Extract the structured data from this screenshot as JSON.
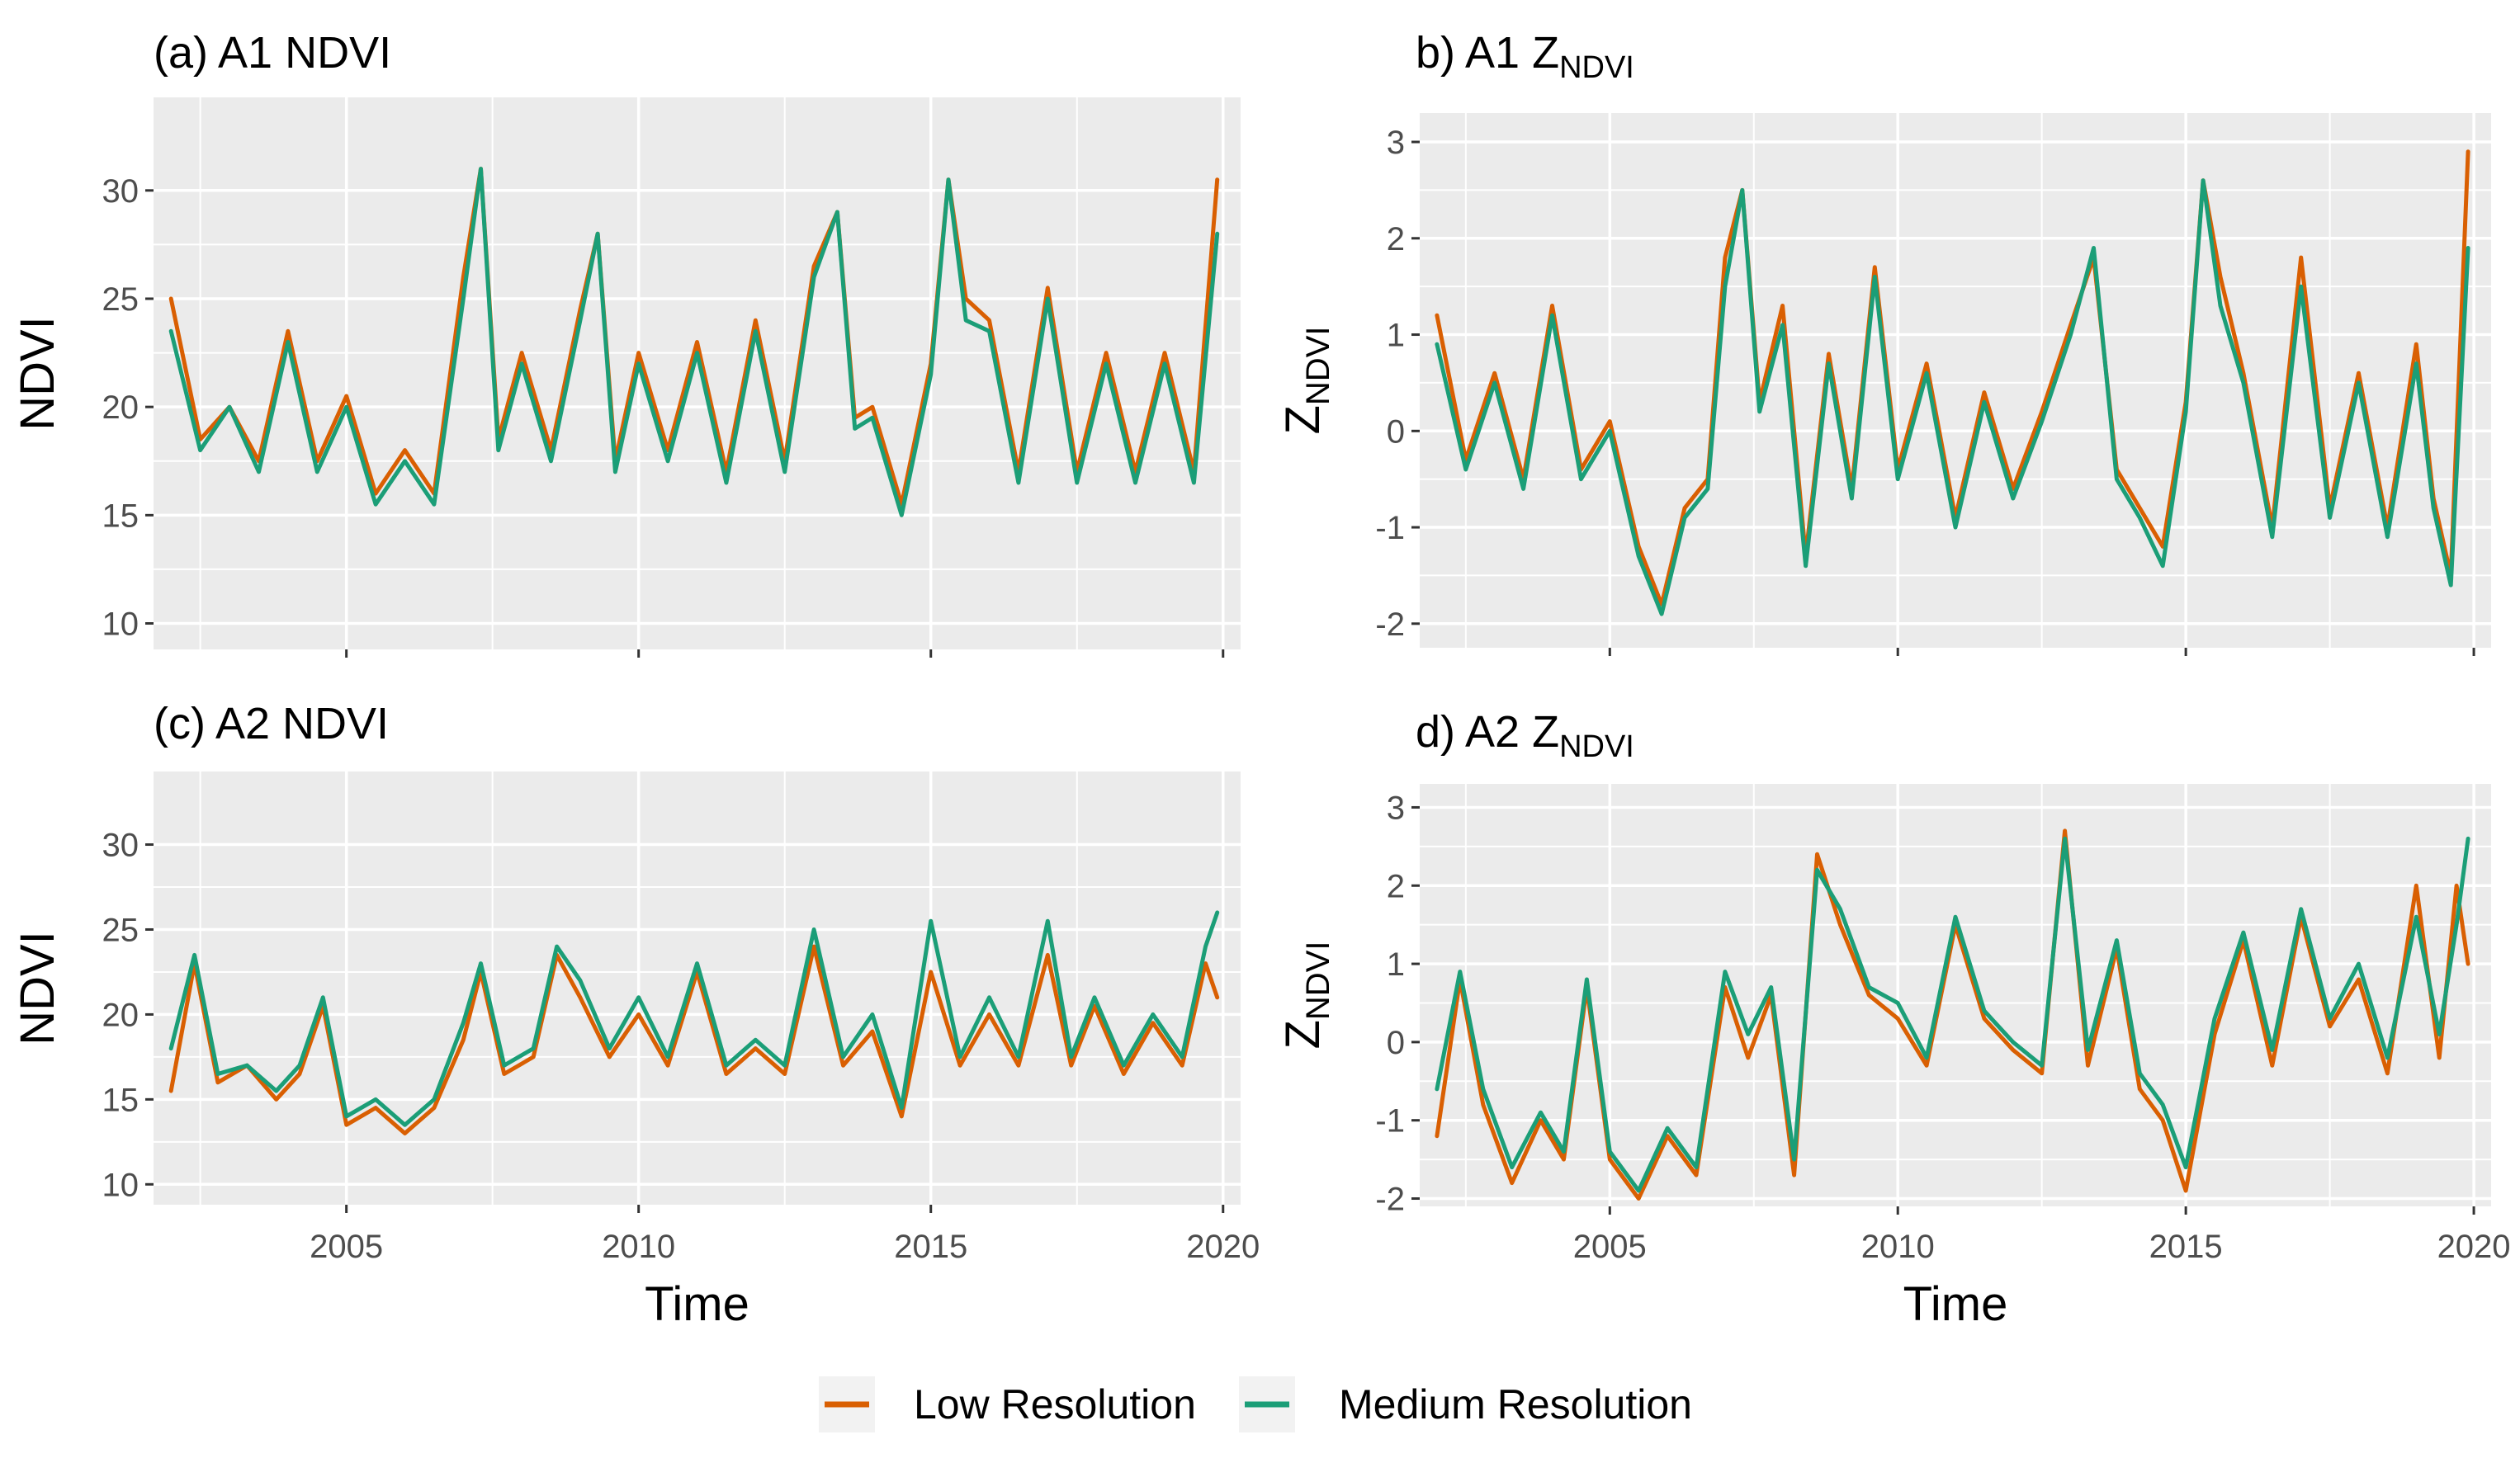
{
  "figure": {
    "legend": [
      {
        "label": "Low Resolution",
        "color": "#d95f02"
      },
      {
        "label": "Medium Resolution",
        "color": "#1b9e77"
      }
    ]
  },
  "chart_data": [
    {
      "type": "line",
      "title": "(a) A1 NDVI",
      "title_parts": {
        "main": "(a) A1 NDVI",
        "sub": ""
      },
      "xlabel": "",
      "ylabel": "NDVI",
      "ylabel_parts": {
        "main": "NDVI",
        "sub": ""
      },
      "xlim": [
        2001.7,
        2020.3
      ],
      "ylim": [
        8.8,
        34.3
      ],
      "xticks": [
        2005,
        2010,
        2015,
        2020
      ],
      "xtick_labels": [],
      "yticks": [
        10,
        15,
        20,
        25,
        30
      ],
      "ytick_labels": [
        "10",
        "15",
        "20",
        "25",
        "30"
      ],
      "x": [
        2002.0,
        2002.5,
        2003.0,
        2003.5,
        2004.0,
        2004.5,
        2005.0,
        2005.5,
        2006.0,
        2006.5,
        2007.0,
        2007.3,
        2007.6,
        2008.0,
        2008.5,
        2009.0,
        2009.3,
        2009.6,
        2010.0,
        2010.5,
        2011.0,
        2011.5,
        2012.0,
        2012.5,
        2013.0,
        2013.4,
        2013.7,
        2014.0,
        2014.5,
        2015.0,
        2015.3,
        2015.6,
        2016.0,
        2016.5,
        2017.0,
        2017.5,
        2018.0,
        2018.5,
        2019.0,
        2019.5,
        2019.9
      ],
      "series": [
        {
          "name": "Low Resolution",
          "values": [
            25.0,
            18.5,
            20.0,
            17.5,
            23.5,
            17.5,
            20.5,
            16.0,
            18.0,
            16.0,
            26.0,
            31.0,
            18.5,
            22.5,
            18.0,
            24.5,
            28.0,
            17.5,
            22.5,
            18.0,
            23.0,
            17.0,
            24.0,
            17.5,
            26.5,
            29.0,
            19.5,
            20.0,
            15.5,
            22.0,
            30.5,
            25.0,
            24.0,
            17.0,
            25.5,
            17.0,
            22.5,
            17.0,
            22.5,
            17.0,
            30.5
          ]
        },
        {
          "name": "Medium Resolution",
          "values": [
            23.5,
            18.0,
            20.0,
            17.0,
            23.0,
            17.0,
            20.0,
            15.5,
            17.5,
            15.5,
            25.0,
            31.0,
            18.0,
            22.0,
            17.5,
            24.0,
            28.0,
            17.0,
            22.0,
            17.5,
            22.5,
            16.5,
            23.5,
            17.0,
            26.0,
            29.0,
            19.0,
            19.5,
            15.0,
            21.5,
            30.5,
            24.0,
            23.5,
            16.5,
            25.0,
            16.5,
            22.0,
            16.5,
            22.0,
            16.5,
            28.0
          ]
        }
      ]
    },
    {
      "type": "line",
      "title": "b) A1 ZNDVI",
      "title_parts": {
        "main": "b) A1 Z",
        "sub": "NDVI"
      },
      "xlabel": "",
      "ylabel": "ZNDVI",
      "ylabel_parts": {
        "main": "Z",
        "sub": "NDVI"
      },
      "xlim": [
        2001.7,
        2020.3
      ],
      "ylim": [
        -2.25,
        3.3
      ],
      "xticks": [
        2005,
        2010,
        2015,
        2020
      ],
      "xtick_labels": [],
      "yticks": [
        -2,
        -1,
        0,
        1,
        2,
        3
      ],
      "ytick_labels": [
        "-2",
        "-1",
        "0",
        "1",
        "2",
        "3"
      ],
      "x": [
        2002.0,
        2002.5,
        2003.0,
        2003.5,
        2004.0,
        2004.5,
        2005.0,
        2005.5,
        2005.9,
        2006.3,
        2006.7,
        2007.0,
        2007.3,
        2007.6,
        2008.0,
        2008.4,
        2008.8,
        2009.2,
        2009.6,
        2010.0,
        2010.5,
        2011.0,
        2011.5,
        2012.0,
        2012.5,
        2013.0,
        2013.4,
        2013.8,
        2014.2,
        2014.6,
        2015.0,
        2015.3,
        2015.6,
        2016.0,
        2016.5,
        2017.0,
        2017.5,
        2018.0,
        2018.5,
        2019.0,
        2019.3,
        2019.6,
        2019.9
      ],
      "series": [
        {
          "name": "Low Resolution",
          "values": [
            1.2,
            -0.3,
            0.6,
            -0.5,
            1.3,
            -0.4,
            0.1,
            -1.2,
            -1.8,
            -0.8,
            -0.5,
            1.8,
            2.5,
            0.3,
            1.3,
            -1.3,
            0.8,
            -0.6,
            1.7,
            -0.4,
            0.7,
            -0.9,
            0.4,
            -0.6,
            0.2,
            1.1,
            1.8,
            -0.4,
            -0.8,
            -1.2,
            0.3,
            2.6,
            1.6,
            0.6,
            -1.0,
            1.8,
            -0.8,
            0.6,
            -1.0,
            0.9,
            -0.7,
            -1.5,
            2.9
          ]
        },
        {
          "name": "Medium Resolution",
          "values": [
            0.9,
            -0.4,
            0.5,
            -0.6,
            1.2,
            -0.5,
            0.0,
            -1.3,
            -1.9,
            -0.9,
            -0.6,
            1.5,
            2.5,
            0.2,
            1.1,
            -1.4,
            0.7,
            -0.7,
            1.6,
            -0.5,
            0.6,
            -1.0,
            0.3,
            -0.7,
            0.1,
            1.0,
            1.9,
            -0.5,
            -0.9,
            -1.4,
            0.2,
            2.6,
            1.3,
            0.5,
            -1.1,
            1.5,
            -0.9,
            0.5,
            -1.1,
            0.7,
            -0.8,
            -1.6,
            1.9
          ]
        }
      ]
    },
    {
      "type": "line",
      "title": "(c) A2 NDVI",
      "title_parts": {
        "main": "(c) A2 NDVI",
        "sub": ""
      },
      "xlabel": "Time",
      "ylabel": "NDVI",
      "ylabel_parts": {
        "main": "NDVI",
        "sub": ""
      },
      "xlim": [
        2001.7,
        2020.3
      ],
      "ylim": [
        8.8,
        34.3
      ],
      "xticks": [
        2005,
        2010,
        2015,
        2020
      ],
      "xtick_labels": [
        "2005",
        "2010",
        "2015",
        "2020"
      ],
      "yticks": [
        10,
        15,
        20,
        25,
        30
      ],
      "ytick_labels": [
        "10",
        "15",
        "20",
        "25",
        "30"
      ],
      "x": [
        2002.0,
        2002.4,
        2002.8,
        2003.3,
        2003.8,
        2004.2,
        2004.6,
        2005.0,
        2005.5,
        2006.0,
        2006.5,
        2007.0,
        2007.3,
        2007.7,
        2008.2,
        2008.6,
        2009.0,
        2009.5,
        2010.0,
        2010.5,
        2011.0,
        2011.5,
        2012.0,
        2012.5,
        2013.0,
        2013.5,
        2014.0,
        2014.5,
        2015.0,
        2015.5,
        2016.0,
        2016.5,
        2017.0,
        2017.4,
        2017.8,
        2018.3,
        2018.8,
        2019.3,
        2019.7,
        2019.9
      ],
      "series": [
        {
          "name": "Low Resolution",
          "values": [
            15.5,
            23.0,
            16.0,
            17.0,
            15.0,
            16.5,
            20.5,
            13.5,
            14.5,
            13.0,
            14.5,
            18.5,
            22.5,
            16.5,
            17.5,
            23.5,
            21.0,
            17.5,
            20.0,
            17.0,
            22.5,
            16.5,
            18.0,
            16.5,
            24.0,
            17.0,
            19.0,
            14.0,
            22.5,
            17.0,
            20.0,
            17.0,
            23.5,
            17.0,
            20.5,
            16.5,
            19.5,
            17.0,
            23.0,
            21.0
          ]
        },
        {
          "name": "Medium Resolution",
          "values": [
            18.0,
            23.5,
            16.5,
            17.0,
            15.5,
            17.0,
            21.0,
            14.0,
            15.0,
            13.5,
            15.0,
            19.5,
            23.0,
            17.0,
            18.0,
            24.0,
            22.0,
            18.0,
            21.0,
            17.5,
            23.0,
            17.0,
            18.5,
            17.0,
            25.0,
            17.5,
            20.0,
            14.5,
            25.5,
            17.5,
            21.0,
            17.5,
            25.5,
            17.5,
            21.0,
            17.0,
            20.0,
            17.5,
            24.0,
            26.0
          ]
        }
      ]
    },
    {
      "type": "line",
      "title": "d) A2 ZNDVI",
      "title_parts": {
        "main": "d) A2 Z",
        "sub": "NDVI"
      },
      "xlabel": "Time",
      "ylabel": "ZNDVI",
      "ylabel_parts": {
        "main": "Z",
        "sub": "NDVI"
      },
      "xlim": [
        2001.7,
        2020.3
      ],
      "ylim": [
        -2.1,
        3.3
      ],
      "xticks": [
        2005,
        2010,
        2015,
        2020
      ],
      "xtick_labels": [
        "2005",
        "2010",
        "2015",
        "2020"
      ],
      "yticks": [
        -2,
        -1,
        0,
        1,
        2,
        3
      ],
      "ytick_labels": [
        "-2",
        "-1",
        "0",
        "1",
        "2",
        "3"
      ],
      "x": [
        2002.0,
        2002.4,
        2002.8,
        2003.3,
        2003.8,
        2004.2,
        2004.6,
        2005.0,
        2005.5,
        2006.0,
        2006.5,
        2007.0,
        2007.4,
        2007.8,
        2008.2,
        2008.6,
        2009.0,
        2009.5,
        2010.0,
        2010.5,
        2011.0,
        2011.5,
        2012.0,
        2012.5,
        2012.9,
        2013.3,
        2013.8,
        2014.2,
        2014.6,
        2015.0,
        2015.5,
        2016.0,
        2016.5,
        2017.0,
        2017.5,
        2018.0,
        2018.5,
        2019.0,
        2019.4,
        2019.7,
        2019.9
      ],
      "series": [
        {
          "name": "Low Resolution",
          "values": [
            -1.2,
            0.8,
            -0.8,
            -1.8,
            -1.0,
            -1.5,
            0.7,
            -1.5,
            -2.0,
            -1.2,
            -1.7,
            0.7,
            -0.2,
            0.6,
            -1.7,
            2.4,
            1.5,
            0.6,
            0.3,
            -0.3,
            1.5,
            0.3,
            -0.1,
            -0.4,
            2.7,
            -0.3,
            1.2,
            -0.6,
            -1.0,
            -1.9,
            0.1,
            1.3,
            -0.3,
            1.6,
            0.2,
            0.8,
            -0.4,
            2.0,
            -0.2,
            2.0,
            1.0
          ]
        },
        {
          "name": "Medium Resolution",
          "values": [
            -0.6,
            0.9,
            -0.6,
            -1.6,
            -0.9,
            -1.4,
            0.8,
            -1.4,
            -1.9,
            -1.1,
            -1.6,
            0.9,
            0.1,
            0.7,
            -1.5,
            2.2,
            1.7,
            0.7,
            0.5,
            -0.2,
            1.6,
            0.4,
            0.0,
            -0.3,
            2.6,
            -0.1,
            1.3,
            -0.4,
            -0.8,
            -1.6,
            0.3,
            1.4,
            -0.1,
            1.7,
            0.3,
            1.0,
            -0.2,
            1.6,
            0.1,
            1.5,
            2.6
          ]
        }
      ]
    }
  ]
}
